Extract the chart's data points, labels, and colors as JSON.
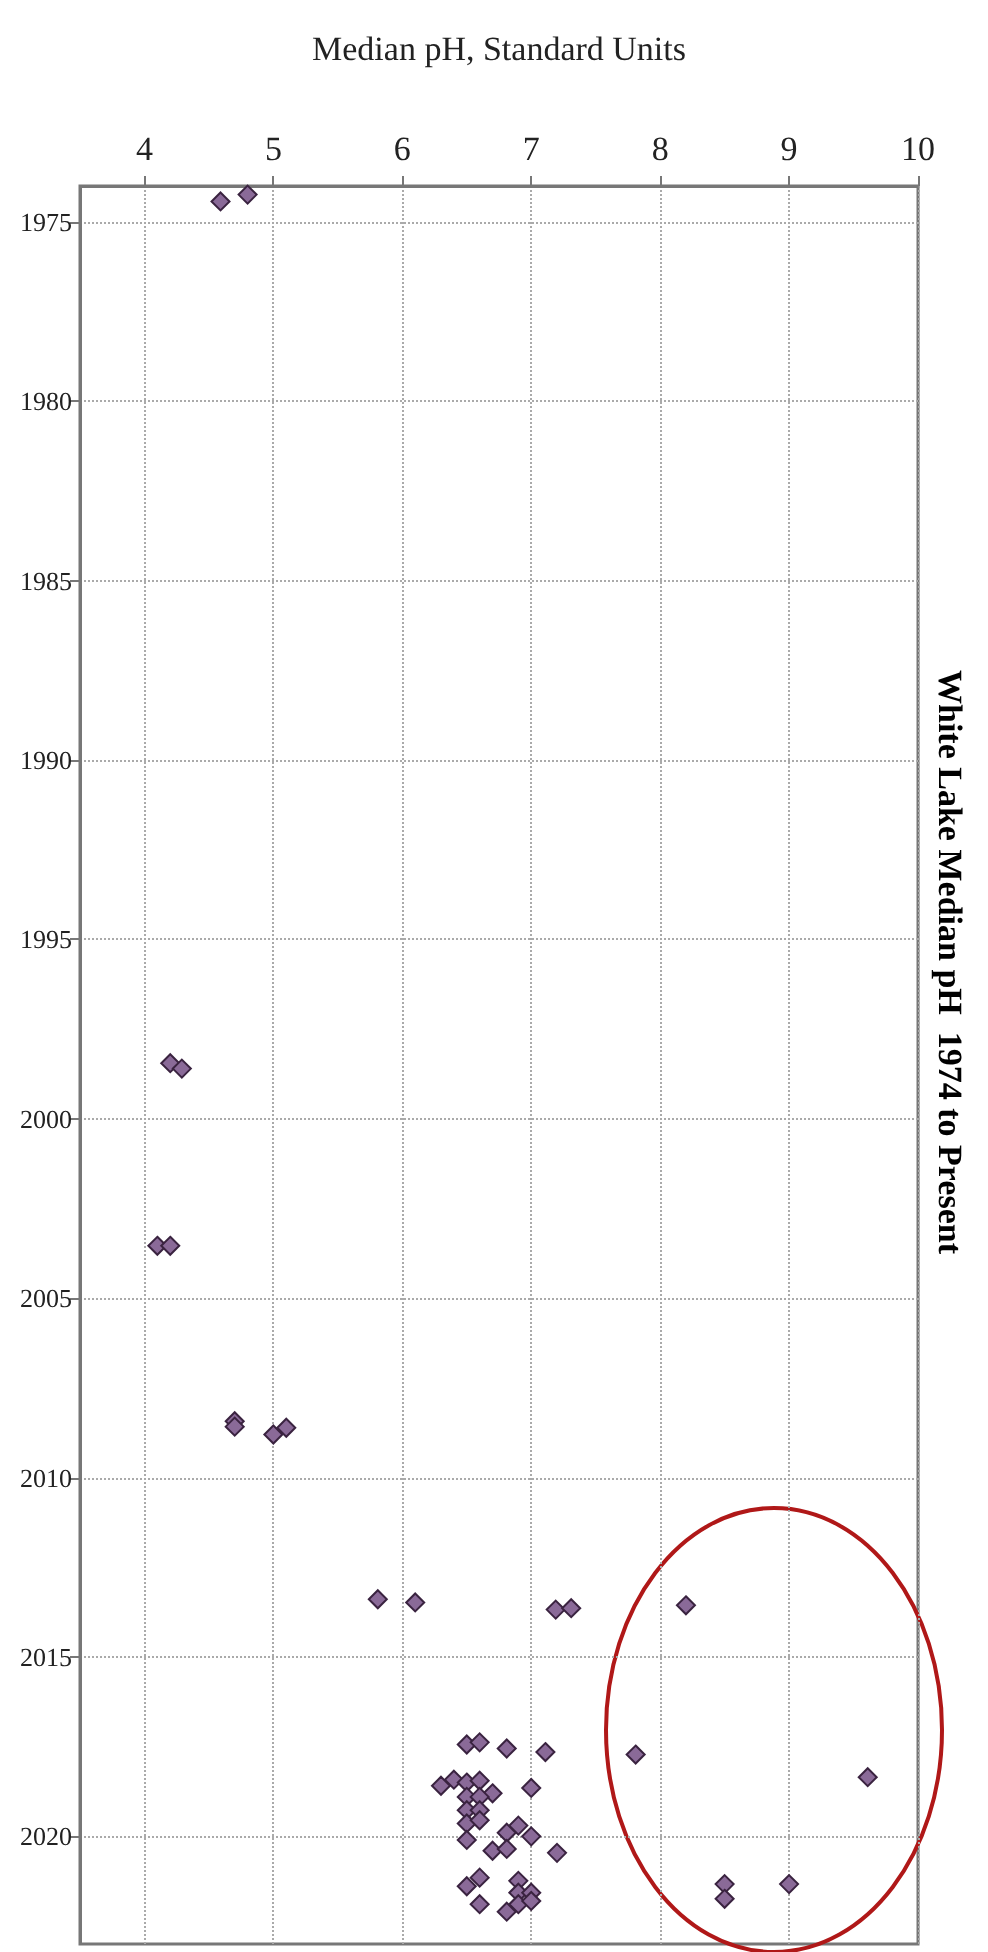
{
  "chart_data": {
    "type": "scatter",
    "title": "White Lake Median pH  1974 to Present",
    "xlabel": "Median pH, Standard Units",
    "marker": "diamond",
    "grid": true,
    "xlim": [
      3.5,
      10
    ],
    "xticks": [
      4,
      5,
      6,
      7,
      8,
      9,
      10
    ],
    "ylim": [
      2023,
      1974
    ],
    "yticks": [
      1975,
      1980,
      1985,
      1990,
      1995,
      2000,
      2005,
      2010,
      2015,
      2020
    ],
    "series": [
      {
        "color": "#8a6a98",
        "x": [
          4.59,
          4.8,
          4.2,
          4.29,
          4.1,
          4.2,
          4.7,
          4.7,
          5.0,
          5.1,
          5.81,
          6.1,
          7.19,
          7.31,
          8.2,
          6.5,
          6.6,
          6.81,
          7.11,
          7.81,
          9.61,
          6.3,
          6.4,
          6.5,
          6.6,
          6.7,
          7.0,
          6.5,
          6.6,
          6.5,
          6.6,
          6.5,
          6.6,
          6.5,
          6.9,
          6.81,
          7.0,
          6.7,
          6.81,
          7.2,
          6.5,
          6.6,
          6.6,
          6.81,
          6.9,
          6.9,
          7.0,
          6.9,
          7.0,
          8.5,
          8.5,
          9.0
        ],
        "values": [
          1974.43,
          1974.24,
          1998.45,
          1998.6,
          2003.54,
          2003.54,
          2008.43,
          2008.58,
          2008.8,
          2008.61,
          2013.39,
          2013.48,
          2013.68,
          2013.64,
          2013.56,
          2017.44,
          2017.38,
          2017.55,
          2017.65,
          2017.72,
          2018.35,
          2018.59,
          2018.42,
          2018.5,
          2018.45,
          2018.8,
          2018.65,
          2018.9,
          2018.9,
          2019.27,
          2019.27,
          2019.64,
          2019.55,
          2020.1,
          2019.7,
          2019.9,
          2020.0,
          2020.4,
          2020.35,
          2020.46,
          2021.39,
          2021.15,
          2021.89,
          2022.1,
          2021.24,
          2021.57,
          2021.57,
          2021.89,
          2021.8,
          2021.33,
          2021.74,
          2021.33
        ]
      }
    ]
  }
}
